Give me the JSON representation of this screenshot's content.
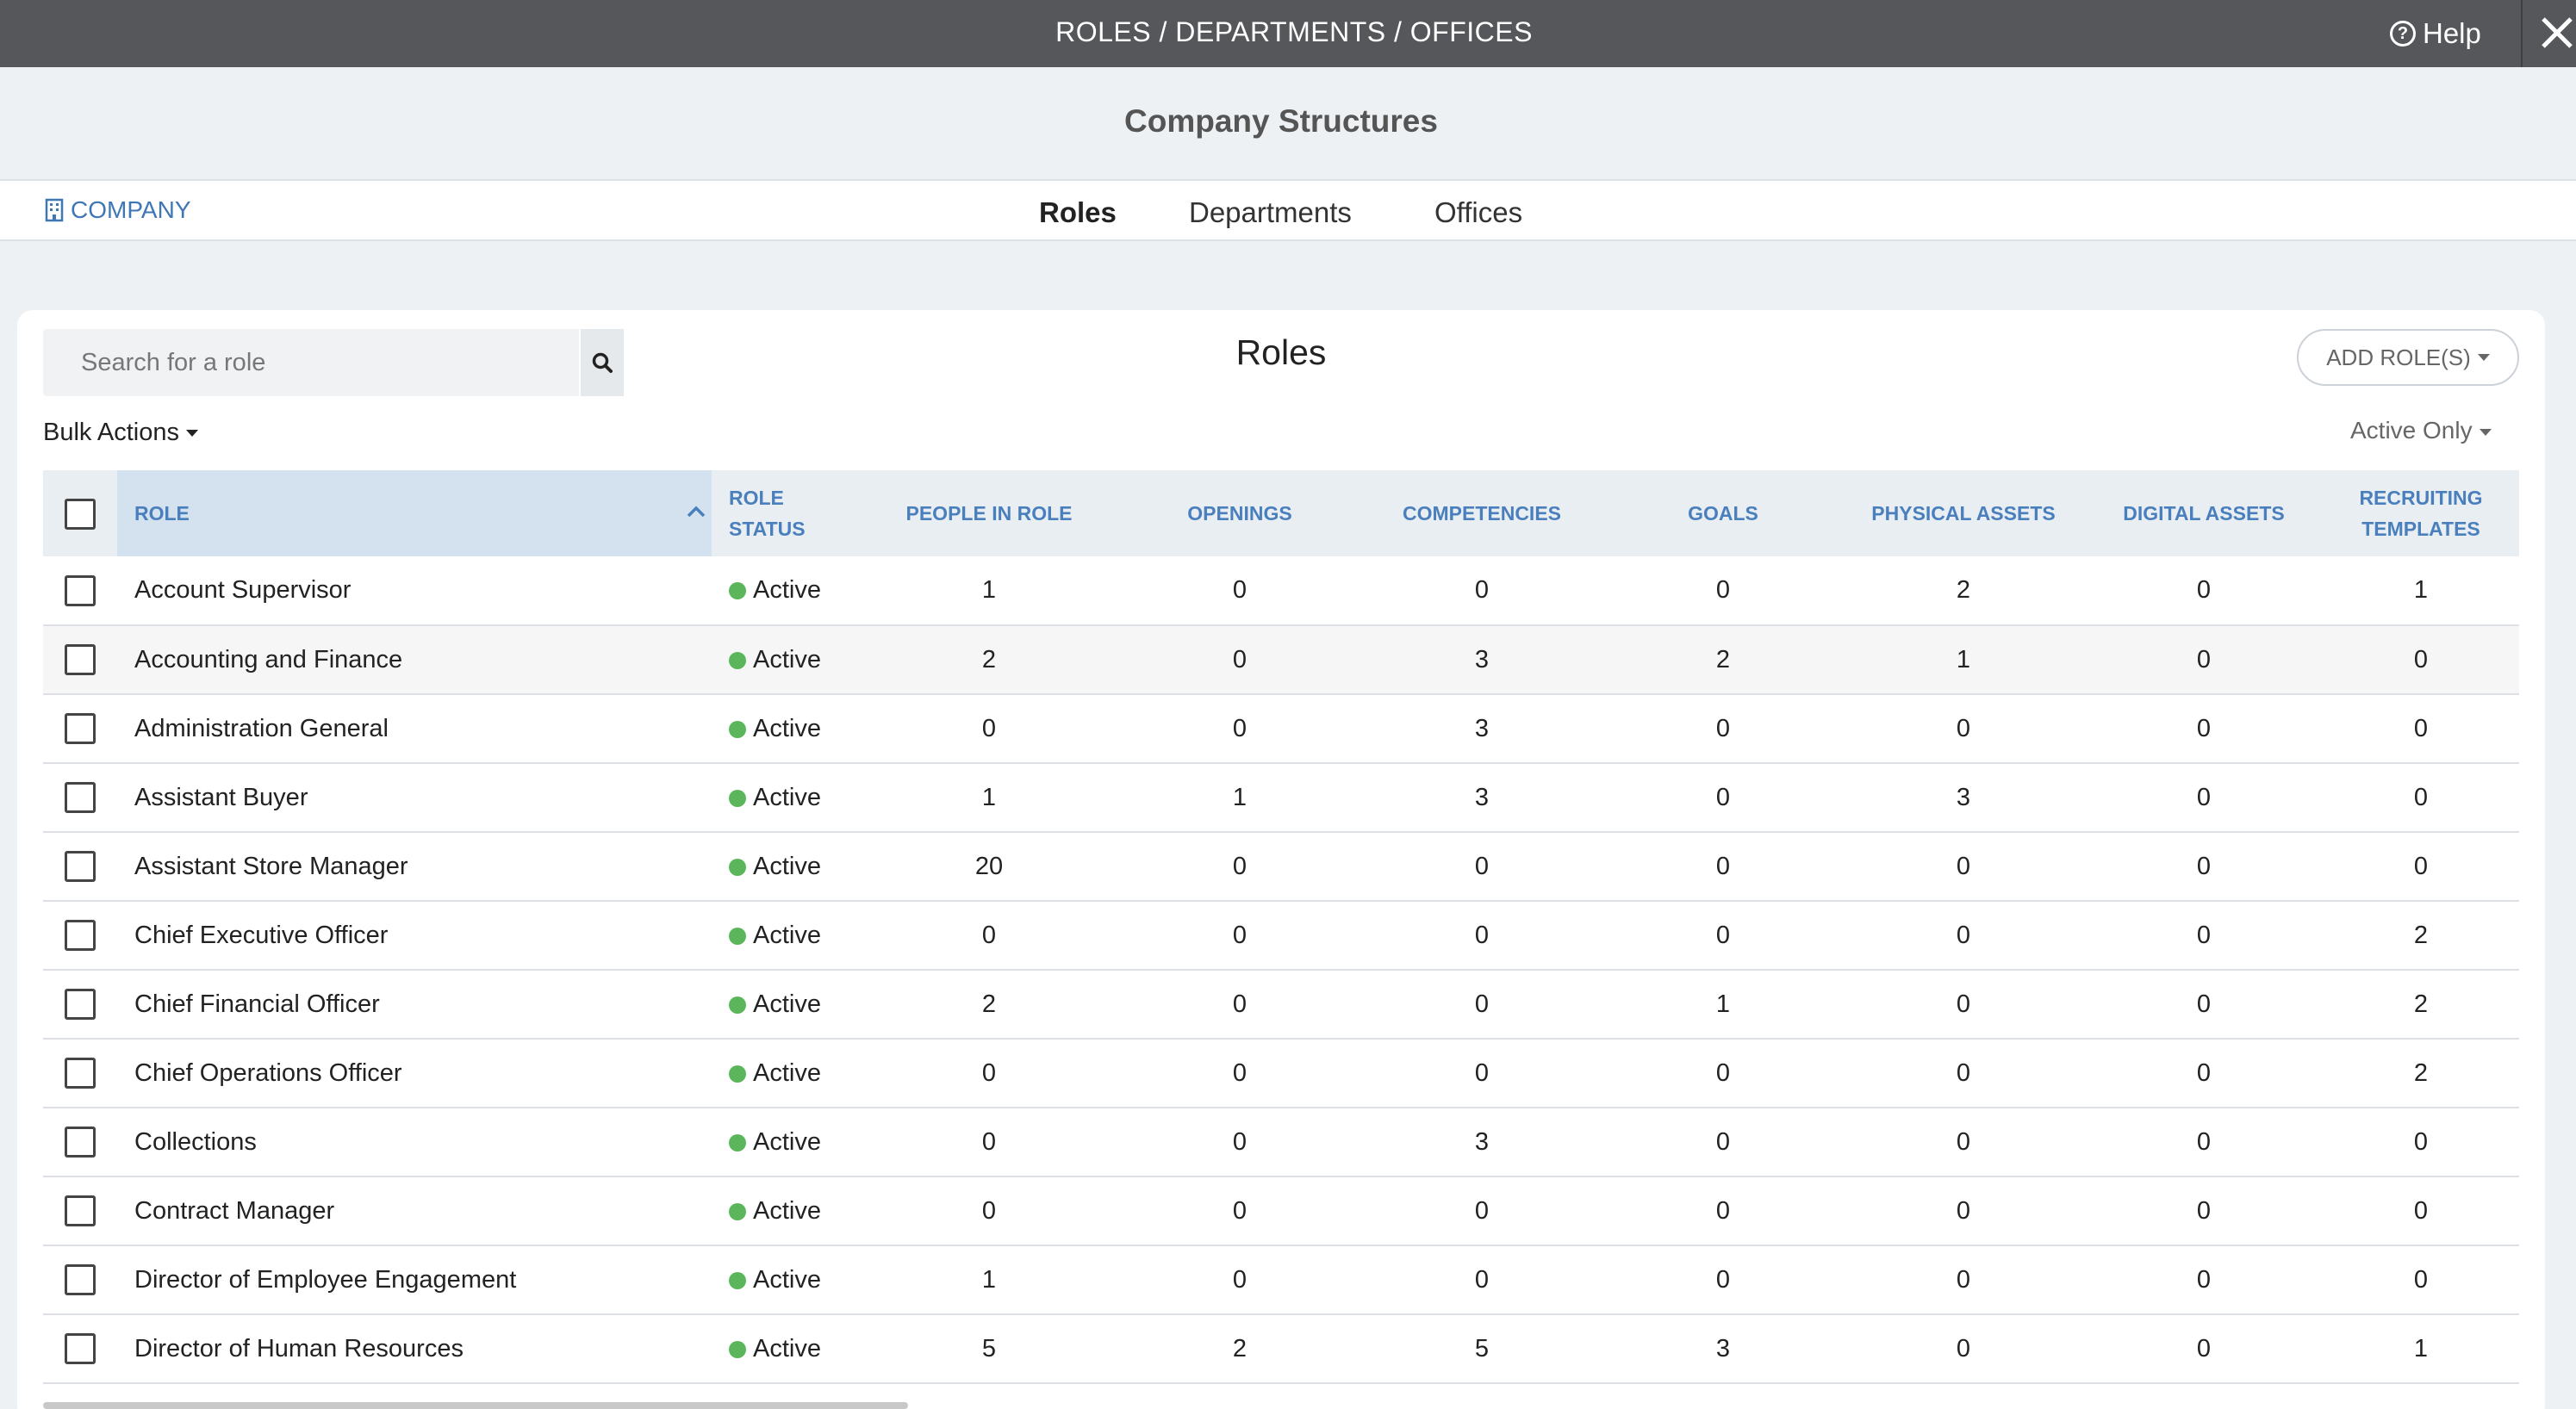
{
  "topbar": {
    "breadcrumb": "ROLES / DEPARTMENTS / OFFICES",
    "help_label": "Help"
  },
  "page_title": "Company Structures",
  "nav": {
    "company_label": "COMPANY",
    "tabs": [
      {
        "label": "Roles"
      },
      {
        "label": "Departments"
      },
      {
        "label": "Offices"
      }
    ]
  },
  "roles_panel": {
    "search_placeholder": "Search for a role",
    "title": "Roles",
    "add_button": "ADD ROLE(S)",
    "bulk_actions": "Bulk Actions",
    "filter": "Active Only"
  },
  "table": {
    "columns": [
      "ROLE",
      "ROLE STATUS",
      "PEOPLE IN ROLE",
      "OPENINGS",
      "COMPETENCIES",
      "GOALS",
      "PHYSICAL ASSETS",
      "DIGITAL ASSETS",
      "RECRUITING TEMPLATES"
    ],
    "rows": [
      {
        "role": "Account Supervisor",
        "status": "Active",
        "people": "1",
        "openings": "0",
        "competencies": "0",
        "goals": "0",
        "physical": "2",
        "digital": "0",
        "recruiting": "1"
      },
      {
        "role": "Accounting and Finance",
        "status": "Active",
        "people": "2",
        "openings": "0",
        "competencies": "3",
        "goals": "2",
        "physical": "1",
        "digital": "0",
        "recruiting": "0"
      },
      {
        "role": "Administration General",
        "status": "Active",
        "people": "0",
        "openings": "0",
        "competencies": "3",
        "goals": "0",
        "physical": "0",
        "digital": "0",
        "recruiting": "0"
      },
      {
        "role": "Assistant Buyer",
        "status": "Active",
        "people": "1",
        "openings": "1",
        "competencies": "3",
        "goals": "0",
        "physical": "3",
        "digital": "0",
        "recruiting": "0"
      },
      {
        "role": "Assistant Store Manager",
        "status": "Active",
        "people": "20",
        "openings": "0",
        "competencies": "0",
        "goals": "0",
        "physical": "0",
        "digital": "0",
        "recruiting": "0"
      },
      {
        "role": "Chief Executive Officer",
        "status": "Active",
        "people": "0",
        "openings": "0",
        "competencies": "0",
        "goals": "0",
        "physical": "0",
        "digital": "0",
        "recruiting": "2"
      },
      {
        "role": "Chief Financial Officer",
        "status": "Active",
        "people": "2",
        "openings": "0",
        "competencies": "0",
        "goals": "1",
        "physical": "0",
        "digital": "0",
        "recruiting": "2"
      },
      {
        "role": "Chief Operations Officer",
        "status": "Active",
        "people": "0",
        "openings": "0",
        "competencies": "0",
        "goals": "0",
        "physical": "0",
        "digital": "0",
        "recruiting": "2"
      },
      {
        "role": "Collections",
        "status": "Active",
        "people": "0",
        "openings": "0",
        "competencies": "3",
        "goals": "0",
        "physical": "0",
        "digital": "0",
        "recruiting": "0"
      },
      {
        "role": "Contract Manager",
        "status": "Active",
        "people": "0",
        "openings": "0",
        "competencies": "0",
        "goals": "0",
        "physical": "0",
        "digital": "0",
        "recruiting": "0"
      },
      {
        "role": "Director of Employee Engagement",
        "status": "Active",
        "people": "1",
        "openings": "0",
        "competencies": "0",
        "goals": "0",
        "physical": "0",
        "digital": "0",
        "recruiting": "0"
      },
      {
        "role": "Director of Human Resources",
        "status": "Active",
        "people": "5",
        "openings": "2",
        "competencies": "5",
        "goals": "3",
        "physical": "0",
        "digital": "0",
        "recruiting": "1"
      }
    ]
  },
  "colors": {
    "accent": "#4a7fbd",
    "active_dot": "#5bb65b",
    "topbar": "#55575a"
  },
  "icons": {
    "help": "question-circle-icon",
    "close": "close-icon",
    "company": "building-icon",
    "search": "search-icon",
    "sort": "chevron-up-icon"
  }
}
